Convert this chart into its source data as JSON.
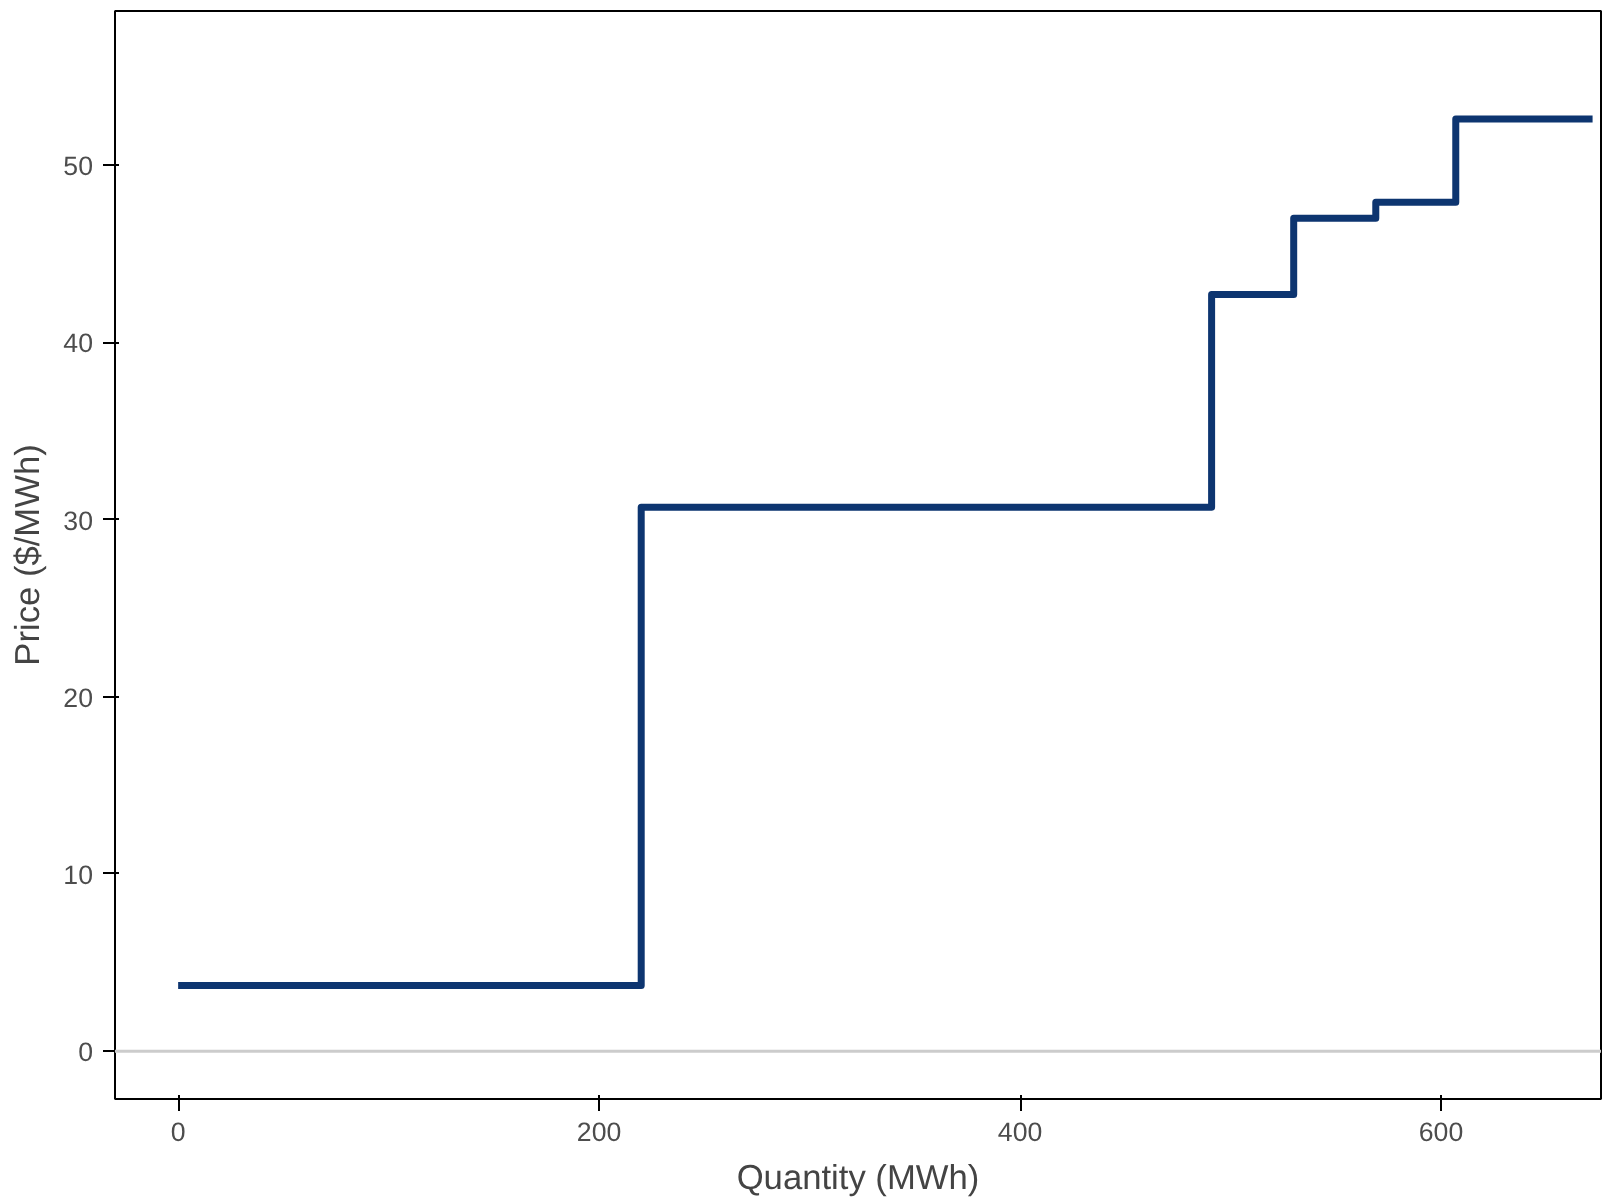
{
  "chart_data": {
    "type": "step",
    "xlabel": "Quantity (MWh)",
    "ylabel": "Price ($/MWh)",
    "x": [
      0,
      220,
      491,
      530,
      569,
      607,
      672
    ],
    "series": [
      {
        "color": "#0d3570",
        "values": [
          3.7,
          30.7,
          42.7,
          47.0,
          47.9,
          52.6,
          52.6
        ]
      }
    ],
    "xlim": [
      -30,
      676
    ],
    "ylim": [
      -2.7,
      58.7
    ],
    "xticks": [
      0,
      200,
      400,
      600
    ],
    "yticks": [
      0,
      10,
      20,
      30,
      40,
      50
    ],
    "ref_lines": [
      {
        "axis": "y",
        "value": 0,
        "color": "#cccccc"
      }
    ],
    "grid": false,
    "marker": "none",
    "line_style": "solid"
  }
}
